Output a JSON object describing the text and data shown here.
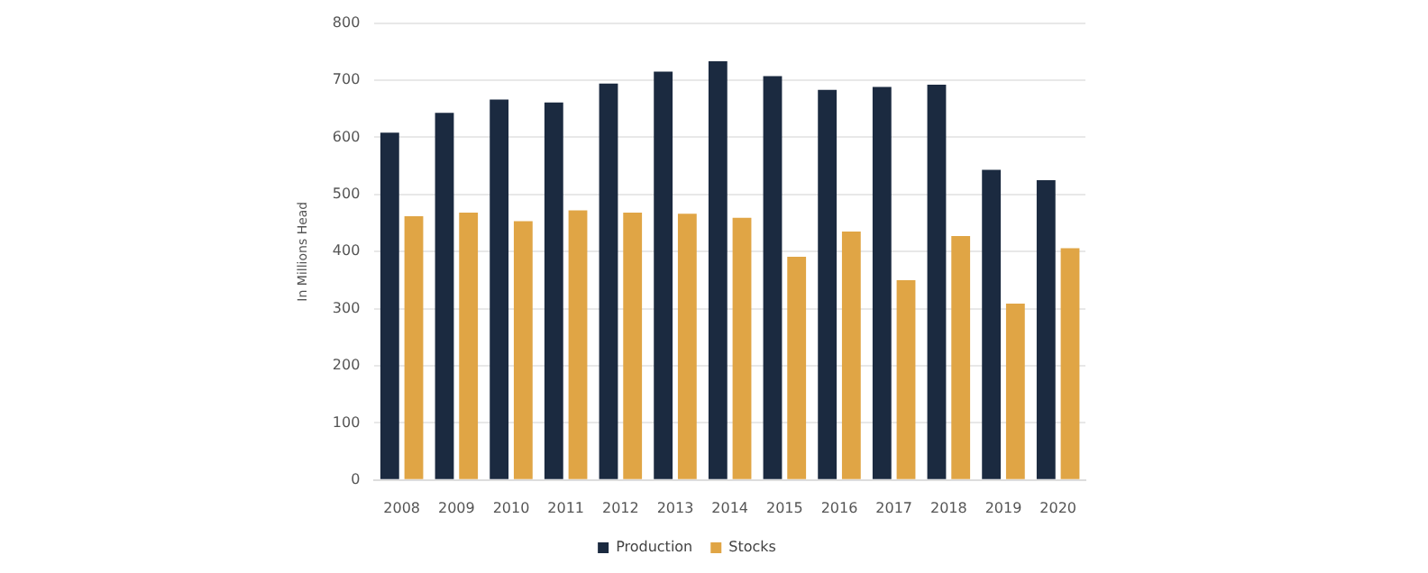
{
  "chart_data": {
    "type": "bar",
    "ylabel": "In Millions Head",
    "categories": [
      "2008",
      "2009",
      "2010",
      "2011",
      "2012",
      "2013",
      "2014",
      "2015",
      "2016",
      "2017",
      "2018",
      "2019",
      "2020"
    ],
    "series": [
      {
        "name": "Production",
        "color": "#1b2a40",
        "values": [
          608,
          643,
          666,
          661,
          694,
          715,
          733,
          707,
          683,
          688,
          692,
          543,
          525
        ]
      },
      {
        "name": "Stocks",
        "color": "#e0a545",
        "values": [
          462,
          468,
          453,
          472,
          468,
          466,
          459,
          391,
          435,
          350,
          427,
          309,
          406
        ]
      }
    ],
    "ylim": [
      0,
      800
    ],
    "yticks": [
      0,
      100,
      200,
      300,
      400,
      500,
      600,
      700,
      800
    ],
    "grid": "y",
    "legend": "bottom"
  }
}
